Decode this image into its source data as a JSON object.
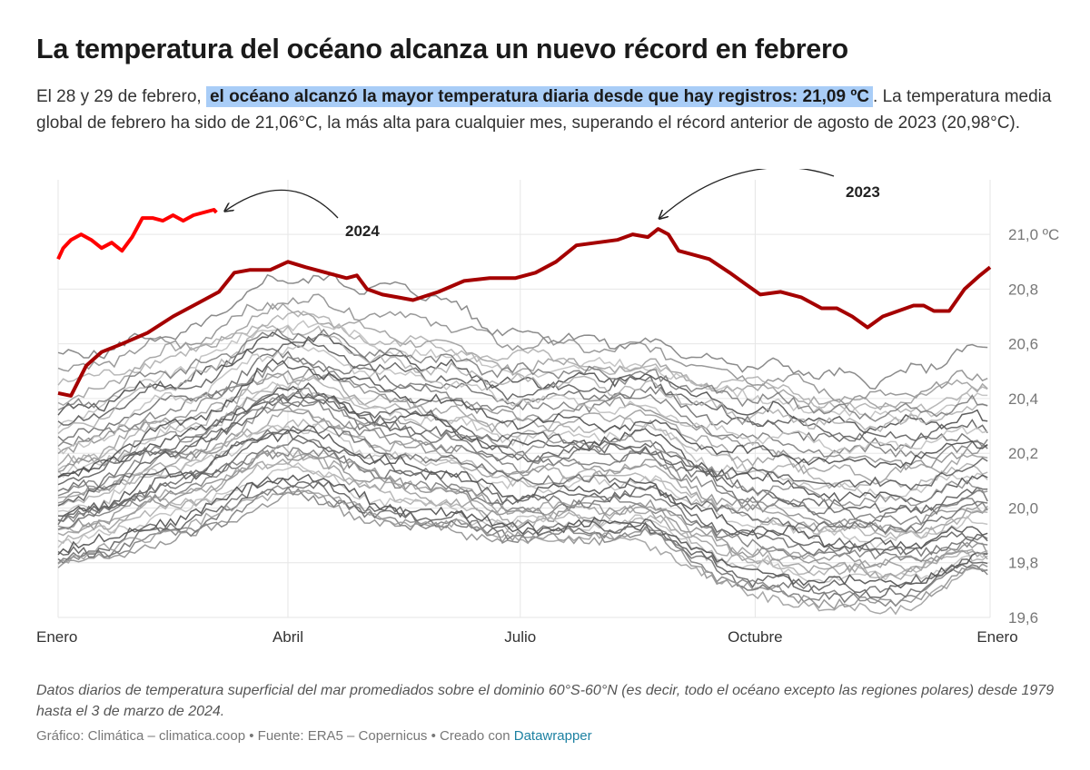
{
  "title": "La temperatura del océano alcanza un nuevo récord en febrero",
  "description": {
    "lead": "El 28 y 29 de febrero,",
    "highlight": "el océano alcanzó la mayor temperatura diaria desde que hay registros: 21,09 ºC",
    "rest": ". La temperatura media global de febrero ha sido de 21,06°C, la más alta para cualquier mes, superando el récord anterior de agosto de 2023 (20,98°C)."
  },
  "note": "Datos diarios de temperatura superficial del mar promediados sobre el dominio 60°S-60°N (es decir, todo el océano excepto las regiones polares) desde 1979 hasta el 3 de marzo de 2024.",
  "credit": {
    "text": "Gráfico: Climática – climatica.coop • Fuente: ERA5 – Copernicus • Creado con",
    "link": "Datawrapper"
  },
  "colors": {
    "highlight_2024": "#ff0000",
    "highlight_2023": "#a50000",
    "history": "#777777",
    "grid": "#e6e6e6",
    "text_highlight_bg": "#a9cdf7"
  },
  "chart_data": {
    "type": "line",
    "x_unit": "día del año",
    "xlim": [
      1,
      366
    ],
    "ylim": [
      19.6,
      21.1
    ],
    "x_ticks": [
      {
        "day": 1,
        "label": "Enero"
      },
      {
        "day": 91,
        "label": "Abril"
      },
      {
        "day": 182,
        "label": "Julio"
      },
      {
        "day": 274,
        "label": "Octubre"
      },
      {
        "day": 366,
        "label": "Enero"
      }
    ],
    "y_ticks": [
      {
        "value": 21.0,
        "label": "21,0 ºC"
      },
      {
        "value": 20.8,
        "label": "20,8"
      },
      {
        "value": 20.6,
        "label": "20,6"
      },
      {
        "value": 20.4,
        "label": "20,4"
      },
      {
        "value": 20.2,
        "label": "20,2"
      },
      {
        "value": 20.0,
        "label": "20,0"
      },
      {
        "value": 19.8,
        "label": "19,8"
      },
      {
        "value": 19.6,
        "label": "19,6"
      }
    ],
    "grid": true,
    "annotations": [
      {
        "label": "2024",
        "series": "2024",
        "target_day": 63,
        "target_value": 21.09
      },
      {
        "label": "2023",
        "series": "2023",
        "target_day": 236,
        "target_value": 21.02
      }
    ],
    "series": [
      {
        "name": "2024",
        "x": [
          1,
          3,
          6,
          10,
          14,
          18,
          22,
          26,
          30,
          34,
          38,
          42,
          46,
          50,
          54,
          58,
          62,
          63
        ],
        "y": [
          20.91,
          20.95,
          20.98,
          21.0,
          20.98,
          20.95,
          20.97,
          20.94,
          20.99,
          21.06,
          21.06,
          21.05,
          21.07,
          21.05,
          21.07,
          21.08,
          21.09,
          21.08
        ]
      },
      {
        "name": "2023",
        "x": [
          1,
          6,
          12,
          18,
          26,
          36,
          46,
          56,
          64,
          70,
          76,
          84,
          91,
          98,
          106,
          114,
          118,
          122,
          128,
          134,
          140,
          150,
          160,
          170,
          180,
          188,
          196,
          204,
          212,
          220,
          226,
          232,
          236,
          240,
          244,
          248,
          256,
          264,
          270,
          276,
          284,
          292,
          300,
          306,
          312,
          318,
          324,
          330,
          336,
          340,
          344,
          350,
          356,
          362,
          366
        ],
        "y": [
          20.42,
          20.41,
          20.52,
          20.57,
          20.6,
          20.64,
          20.7,
          20.75,
          20.79,
          20.86,
          20.87,
          20.87,
          20.9,
          20.88,
          20.86,
          20.84,
          20.85,
          20.8,
          20.78,
          20.77,
          20.76,
          20.79,
          20.83,
          20.84,
          20.84,
          20.86,
          20.9,
          20.96,
          20.97,
          20.98,
          21.0,
          20.99,
          21.02,
          21.0,
          20.94,
          20.93,
          20.91,
          20.86,
          20.82,
          20.78,
          20.79,
          20.77,
          20.73,
          20.73,
          20.7,
          20.66,
          20.7,
          20.72,
          20.74,
          20.74,
          20.72,
          20.72,
          20.8,
          20.85,
          20.88
        ]
      },
      {
        "x": [
          1,
          46,
          91,
          137,
          182,
          228,
          274,
          320,
          366
        ],
        "y": [
          20.55,
          20.63,
          20.84,
          20.8,
          20.64,
          20.6,
          20.52,
          20.47,
          20.58
        ]
      },
      {
        "x": [
          1,
          46,
          91,
          137,
          182,
          228,
          274,
          320,
          366
        ],
        "y": [
          20.5,
          20.6,
          20.76,
          20.7,
          20.6,
          20.58,
          20.48,
          20.4,
          20.48
        ]
      },
      {
        "x": [
          1,
          46,
          91,
          137,
          182,
          228,
          274,
          320,
          366
        ],
        "y": [
          20.38,
          20.57,
          20.72,
          20.62,
          20.52,
          20.52,
          20.43,
          20.38,
          20.45
        ]
      },
      {
        "x": [
          1,
          46,
          91,
          137,
          182,
          228,
          274,
          320,
          366
        ],
        "y": [
          20.45,
          20.55,
          20.7,
          20.6,
          20.55,
          20.5,
          20.45,
          20.36,
          20.42
        ]
      },
      {
        "x": [
          1,
          46,
          91,
          137,
          182,
          228,
          274,
          320,
          366
        ],
        "y": [
          20.3,
          20.5,
          20.68,
          20.58,
          20.5,
          20.52,
          20.4,
          20.33,
          20.4
        ]
      },
      {
        "x": [
          1,
          46,
          91,
          137,
          182,
          228,
          274,
          320,
          366
        ],
        "y": [
          20.35,
          20.46,
          20.62,
          20.54,
          20.46,
          20.48,
          20.36,
          20.3,
          20.33
        ]
      },
      {
        "x": [
          1,
          46,
          91,
          137,
          182,
          228,
          274,
          320,
          366
        ],
        "y": [
          20.3,
          20.44,
          20.6,
          20.5,
          20.42,
          20.46,
          20.32,
          20.26,
          20.3
        ]
      },
      {
        "x": [
          1,
          46,
          91,
          137,
          182,
          228,
          274,
          320,
          366
        ],
        "y": [
          20.25,
          20.38,
          20.55,
          20.46,
          20.4,
          20.42,
          20.3,
          20.24,
          20.25
        ]
      },
      {
        "x": [
          1,
          46,
          91,
          137,
          182,
          228,
          274,
          320,
          366
        ],
        "y": [
          20.22,
          20.36,
          20.53,
          20.43,
          20.36,
          20.4,
          20.25,
          20.2,
          20.22
        ]
      },
      {
        "x": [
          1,
          46,
          91,
          137,
          182,
          228,
          274,
          320,
          366
        ],
        "y": [
          20.2,
          20.34,
          20.5,
          20.4,
          20.34,
          20.38,
          20.22,
          20.16,
          20.2
        ]
      },
      {
        "x": [
          1,
          46,
          91,
          137,
          182,
          228,
          274,
          320,
          366
        ],
        "y": [
          20.16,
          20.32,
          20.48,
          20.38,
          20.3,
          20.34,
          20.18,
          20.12,
          20.18
        ]
      },
      {
        "x": [
          1,
          46,
          91,
          137,
          182,
          228,
          274,
          320,
          366
        ],
        "y": [
          20.15,
          20.3,
          20.46,
          20.36,
          20.28,
          20.3,
          20.15,
          20.08,
          20.14
        ]
      },
      {
        "x": [
          1,
          46,
          91,
          137,
          182,
          228,
          274,
          320,
          366
        ],
        "y": [
          20.12,
          20.27,
          20.44,
          20.34,
          20.26,
          20.28,
          20.12,
          20.05,
          20.12
        ]
      },
      {
        "x": [
          1,
          46,
          91,
          137,
          182,
          228,
          274,
          320,
          366
        ],
        "y": [
          20.1,
          20.25,
          20.43,
          20.32,
          20.23,
          20.26,
          20.1,
          20.03,
          20.1
        ]
      },
      {
        "x": [
          1,
          46,
          91,
          137,
          182,
          228,
          274,
          320,
          366
        ],
        "y": [
          20.08,
          20.24,
          20.41,
          20.3,
          20.2,
          20.22,
          20.06,
          19.99,
          20.06
        ]
      },
      {
        "x": [
          1,
          46,
          91,
          137,
          182,
          228,
          274,
          320,
          366
        ],
        "y": [
          20.06,
          20.22,
          20.4,
          20.28,
          20.18,
          20.2,
          20.04,
          19.97,
          20.04
        ]
      },
      {
        "x": [
          1,
          46,
          91,
          137,
          182,
          228,
          274,
          320,
          366
        ],
        "y": [
          20.05,
          20.2,
          20.38,
          20.26,
          20.16,
          20.18,
          20.02,
          19.95,
          20.02
        ]
      },
      {
        "x": [
          1,
          46,
          91,
          137,
          182,
          228,
          274,
          320,
          366
        ],
        "y": [
          20.03,
          20.18,
          20.36,
          20.24,
          20.14,
          20.16,
          20.0,
          19.93,
          20.0
        ]
      },
      {
        "x": [
          1,
          46,
          91,
          137,
          182,
          228,
          274,
          320,
          366
        ],
        "y": [
          20.02,
          20.16,
          20.34,
          20.22,
          20.12,
          20.14,
          19.98,
          19.92,
          19.98
        ]
      },
      {
        "x": [
          1,
          46,
          91,
          137,
          182,
          228,
          274,
          320,
          366
        ],
        "y": [
          20.0,
          20.15,
          20.32,
          20.2,
          20.1,
          20.12,
          19.96,
          19.9,
          19.96
        ]
      },
      {
        "x": [
          1,
          46,
          91,
          137,
          182,
          228,
          274,
          320,
          366
        ],
        "y": [
          19.98,
          20.14,
          20.3,
          20.18,
          20.08,
          20.1,
          19.94,
          19.88,
          19.94
        ]
      },
      {
        "x": [
          1,
          46,
          91,
          137,
          182,
          228,
          274,
          320,
          366
        ],
        "y": [
          19.97,
          20.12,
          20.28,
          20.16,
          20.06,
          20.08,
          19.92,
          19.86,
          19.92
        ]
      },
      {
        "x": [
          1,
          46,
          91,
          137,
          182,
          228,
          274,
          320,
          366
        ],
        "y": [
          19.96,
          20.1,
          20.26,
          20.14,
          20.04,
          20.06,
          19.9,
          19.85,
          19.9
        ]
      },
      {
        "x": [
          1,
          46,
          91,
          137,
          182,
          228,
          274,
          320,
          366
        ],
        "y": [
          19.95,
          20.08,
          20.24,
          20.12,
          20.02,
          20.04,
          19.88,
          19.84,
          19.88
        ]
      },
      {
        "x": [
          1,
          46,
          91,
          137,
          182,
          228,
          274,
          320,
          366
        ],
        "y": [
          19.94,
          20.06,
          20.22,
          20.1,
          20.0,
          20.02,
          19.86,
          19.82,
          19.86
        ]
      },
      {
        "x": [
          1,
          46,
          91,
          137,
          182,
          228,
          274,
          320,
          366
        ],
        "y": [
          19.92,
          20.04,
          20.2,
          20.08,
          19.98,
          20.0,
          19.84,
          19.8,
          19.85
        ]
      },
      {
        "x": [
          1,
          46,
          91,
          137,
          182,
          228,
          274,
          320,
          366
        ],
        "y": [
          19.9,
          20.02,
          20.18,
          20.06,
          19.96,
          19.98,
          19.82,
          19.78,
          19.84
        ]
      },
      {
        "x": [
          1,
          46,
          91,
          137,
          182,
          228,
          274,
          320,
          366
        ],
        "y": [
          19.88,
          20.0,
          20.16,
          20.04,
          19.95,
          19.96,
          19.8,
          19.76,
          19.83
        ]
      },
      {
        "x": [
          1,
          46,
          91,
          137,
          182,
          228,
          274,
          320,
          366
        ],
        "y": [
          19.86,
          19.98,
          20.14,
          20.02,
          19.94,
          19.95,
          19.78,
          19.74,
          19.82
        ]
      },
      {
        "x": [
          1,
          46,
          91,
          137,
          182,
          228,
          274,
          320,
          366
        ],
        "y": [
          19.84,
          19.96,
          20.12,
          20.0,
          19.93,
          19.94,
          19.76,
          19.72,
          19.81
        ]
      },
      {
        "x": [
          1,
          46,
          91,
          137,
          182,
          228,
          274,
          320,
          366
        ],
        "y": [
          19.82,
          19.94,
          20.1,
          19.98,
          19.92,
          19.93,
          19.74,
          19.7,
          19.8
        ]
      },
      {
        "x": [
          1,
          46,
          91,
          137,
          182,
          228,
          274,
          320,
          366
        ],
        "y": [
          19.8,
          19.92,
          20.08,
          19.96,
          19.91,
          19.92,
          19.72,
          19.68,
          19.79
        ]
      },
      {
        "x": [
          1,
          46,
          91,
          137,
          182,
          228,
          274,
          320,
          366
        ],
        "y": [
          19.79,
          19.9,
          20.06,
          19.95,
          19.9,
          19.91,
          19.71,
          19.66,
          19.78
        ]
      },
      {
        "x": [
          1,
          46,
          91,
          137,
          182,
          228,
          274,
          320,
          366
        ],
        "y": [
          19.78,
          19.88,
          20.04,
          19.94,
          19.89,
          19.9,
          19.7,
          19.64,
          19.78
        ]
      },
      {
        "x": [
          1,
          46,
          91,
          137,
          182,
          228,
          274,
          320,
          366
        ],
        "y": [
          19.8,
          19.92,
          20.06,
          19.95,
          19.9,
          19.88,
          19.68,
          19.62,
          19.77
        ]
      },
      {
        "x": [
          1,
          46,
          91,
          137,
          182,
          228,
          274,
          320,
          366
        ],
        "y": [
          20.28,
          20.46,
          20.66,
          20.52,
          20.46,
          20.44,
          20.34,
          20.3,
          20.36
        ]
      },
      {
        "x": [
          1,
          46,
          91,
          137,
          182,
          228,
          274,
          320,
          366
        ],
        "y": [
          20.2,
          20.4,
          20.58,
          20.48,
          20.4,
          20.36,
          20.26,
          20.22,
          20.28
        ]
      },
      {
        "x": [
          1,
          46,
          91,
          137,
          182,
          228,
          274,
          320,
          366
        ],
        "y": [
          20.1,
          20.3,
          20.52,
          20.42,
          20.32,
          20.3,
          20.2,
          20.16,
          20.24
        ]
      },
      {
        "x": [
          1,
          46,
          91,
          137,
          182,
          228,
          274,
          320,
          366
        ],
        "y": [
          20.0,
          20.2,
          20.4,
          20.34,
          20.26,
          20.22,
          20.12,
          20.08,
          20.15
        ]
      },
      {
        "x": [
          1,
          46,
          91,
          137,
          182,
          228,
          274,
          320,
          366
        ],
        "y": [
          19.92,
          20.1,
          20.3,
          20.2,
          20.12,
          20.08,
          19.96,
          19.92,
          20.0
        ]
      },
      {
        "x": [
          1,
          46,
          91,
          137,
          182,
          228,
          274,
          320,
          366
        ],
        "y": [
          20.36,
          20.5,
          20.64,
          20.56,
          20.5,
          20.48,
          20.4,
          20.34,
          20.38
        ]
      },
      {
        "x": [
          1,
          46,
          91,
          137,
          182,
          228,
          274,
          320,
          366
        ],
        "y": [
          20.14,
          20.26,
          20.42,
          20.3,
          20.22,
          20.24,
          20.08,
          20.02,
          20.08
        ]
      },
      {
        "x": [
          1,
          46,
          91,
          137,
          182,
          228,
          274,
          320,
          366
        ],
        "y": [
          19.9,
          20.04,
          20.2,
          20.1,
          20.0,
          20.0,
          19.82,
          19.76,
          19.84
        ]
      }
    ]
  }
}
